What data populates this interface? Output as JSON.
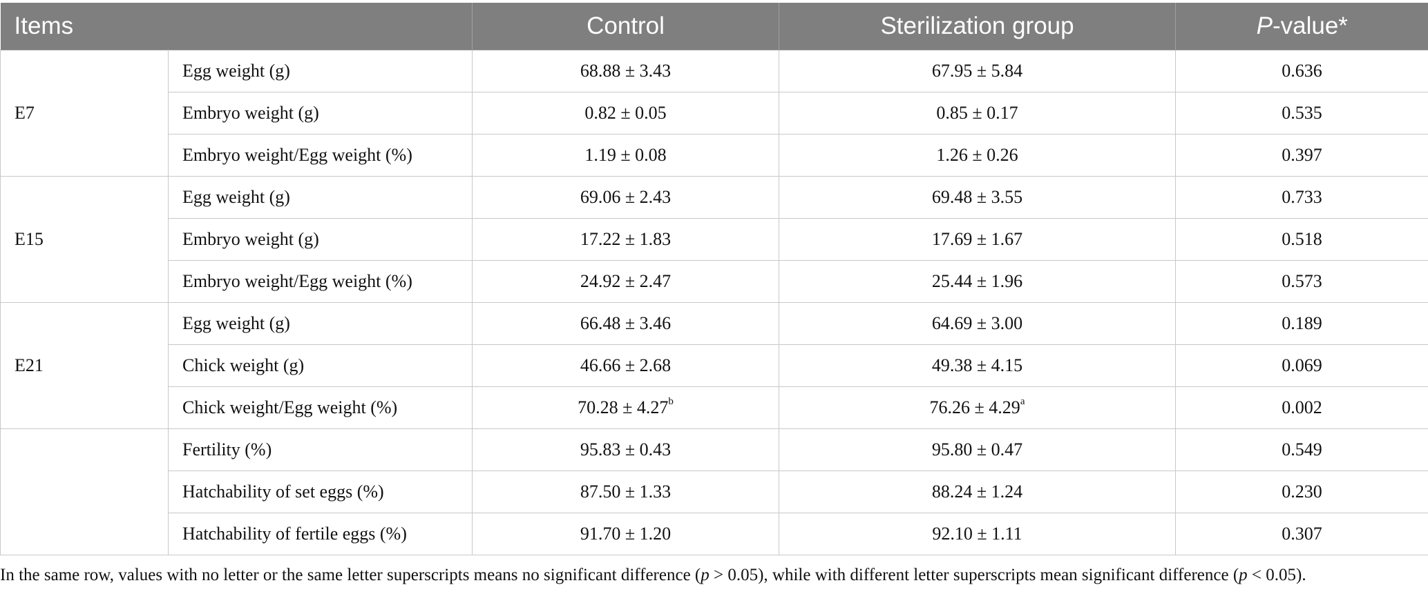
{
  "header": {
    "items": "Items",
    "control": "Control",
    "sterilization": "Sterilization group",
    "pvalue_italic": "P",
    "pvalue_rest": "-value*"
  },
  "groups": [
    {
      "label": "E7",
      "rows": [
        {
          "item": "Egg weight (g)",
          "control": "68.88 ± 3.43",
          "control_sup": "",
          "ster": "67.95 ± 5.84",
          "ster_sup": "",
          "p": "0.636"
        },
        {
          "item": "Embryo weight (g)",
          "control": "0.82 ± 0.05",
          "control_sup": "",
          "ster": "0.85 ± 0.17",
          "ster_sup": "",
          "p": "0.535"
        },
        {
          "item": "Embryo weight/Egg weight (%)",
          "control": "1.19 ± 0.08",
          "control_sup": "",
          "ster": "1.26 ± 0.26",
          "ster_sup": "",
          "p": "0.397"
        }
      ]
    },
    {
      "label": "E15",
      "rows": [
        {
          "item": "Egg weight (g)",
          "control": "69.06 ± 2.43",
          "control_sup": "",
          "ster": "69.48 ± 3.55",
          "ster_sup": "",
          "p": "0.733"
        },
        {
          "item": "Embryo weight (g)",
          "control": "17.22 ± 1.83",
          "control_sup": "",
          "ster": "17.69 ± 1.67",
          "ster_sup": "",
          "p": "0.518"
        },
        {
          "item": "Embryo weight/Egg weight (%)",
          "control": "24.92 ± 2.47",
          "control_sup": "",
          "ster": "25.44 ± 1.96",
          "ster_sup": "",
          "p": "0.573"
        }
      ]
    },
    {
      "label": "E21",
      "rows": [
        {
          "item": "Egg weight (g)",
          "control": "66.48 ± 3.46",
          "control_sup": "",
          "ster": "64.69 ± 3.00",
          "ster_sup": "",
          "p": "0.189"
        },
        {
          "item": "Chick weight (g)",
          "control": "46.66 ± 2.68",
          "control_sup": "",
          "ster": "49.38 ± 4.15",
          "ster_sup": "",
          "p": "0.069"
        },
        {
          "item": "Chick weight/Egg weight (%)",
          "control": "70.28 ± 4.27",
          "control_sup": "b",
          "ster": "76.26 ± 4.29",
          "ster_sup": "a",
          "p": "0.002"
        }
      ]
    },
    {
      "label": "",
      "rows": [
        {
          "item": "Fertility (%)",
          "control": "95.83 ± 0.43",
          "control_sup": "",
          "ster": "95.80 ± 0.47",
          "ster_sup": "",
          "p": "0.549"
        },
        {
          "item": "Hatchability of set eggs (%)",
          "control": "87.50 ± 1.33",
          "control_sup": "",
          "ster": "88.24 ± 1.24",
          "ster_sup": "",
          "p": "0.230"
        },
        {
          "item": "Hatchability of fertile eggs (%)",
          "control": "91.70 ± 1.20",
          "control_sup": "",
          "ster": "92.10 ± 1.11",
          "ster_sup": "",
          "p": "0.307"
        }
      ]
    }
  ],
  "footnote": {
    "part1": "In the same row, values with no letter or the same letter superscripts means no significant difference (",
    "p1": "p",
    "part2": " > 0.05), while with different letter superscripts mean significant difference (",
    "p2": "p",
    "part3": " < 0.05)."
  }
}
